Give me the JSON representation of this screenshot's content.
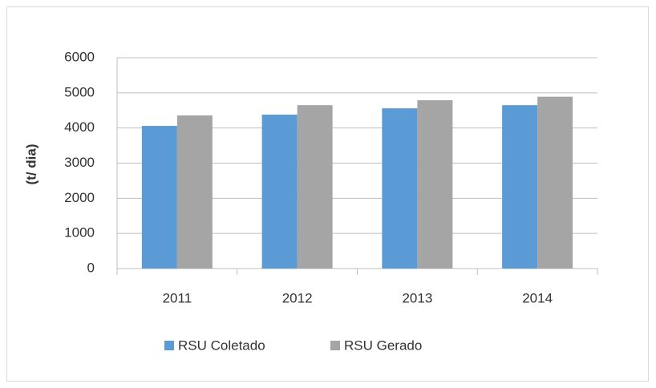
{
  "chart_data": {
    "type": "bar",
    "y_label": "(t/ dia)",
    "categories": [
      "2011",
      "2012",
      "2013",
      "2014"
    ],
    "series": [
      {
        "name": "RSU Coletado",
        "color": "#5b9bd5",
        "values": [
          4060,
          4380,
          4560,
          4650
        ]
      },
      {
        "name": "RSU Gerado",
        "color": "#a5a5a5",
        "values": [
          4360,
          4650,
          4790,
          4890
        ]
      }
    ],
    "ylim": [
      0,
      6000
    ],
    "yticks": [
      0,
      1000,
      2000,
      3000,
      4000,
      5000,
      6000
    ],
    "grid": true,
    "legend": "bottom"
  }
}
